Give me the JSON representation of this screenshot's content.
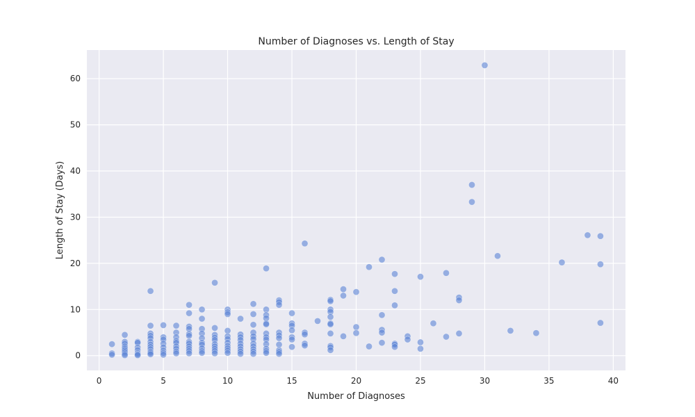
{
  "chart_data": {
    "type": "scatter",
    "title": "Number of Diagnoses vs. Length of Stay",
    "xlabel": "Number of Diagnoses",
    "ylabel": "Length of Stay (Days)",
    "xlim": [
      -0.95,
      40.95
    ],
    "ylim": [
      -3.2,
      66.2
    ],
    "xticks": [
      0,
      5,
      10,
      15,
      20,
      25,
      30,
      35,
      40
    ],
    "yticks": [
      0,
      10,
      20,
      30,
      40,
      50,
      60
    ],
    "grid": true,
    "background_color": "#eaeaf2",
    "grid_color": "#ffffff",
    "marker_color": "#5b83d6",
    "marker_alpha": 0.6,
    "points": [
      [
        1,
        2.5
      ],
      [
        1,
        0.5
      ],
      [
        1,
        0.2
      ],
      [
        2,
        4.5
      ],
      [
        2,
        3.0
      ],
      [
        2,
        2.6
      ],
      [
        2,
        2.0
      ],
      [
        2,
        1.6
      ],
      [
        2,
        1.2
      ],
      [
        2,
        0.8
      ],
      [
        2,
        0.4
      ],
      [
        2,
        0.1
      ],
      [
        3,
        3.0
      ],
      [
        3,
        2.8
      ],
      [
        3,
        1.8
      ],
      [
        3,
        1.2
      ],
      [
        3,
        0.6
      ],
      [
        3,
        0.3
      ],
      [
        3,
        0.1
      ],
      [
        4,
        14.0
      ],
      [
        4,
        6.5
      ],
      [
        4,
        4.8
      ],
      [
        4,
        4.3
      ],
      [
        4,
        3.8
      ],
      [
        4,
        3.0
      ],
      [
        4,
        2.4
      ],
      [
        4,
        1.9
      ],
      [
        4,
        1.4
      ],
      [
        4,
        0.9
      ],
      [
        4,
        0.6
      ],
      [
        4,
        0.3
      ],
      [
        5,
        6.6
      ],
      [
        5,
        4.0
      ],
      [
        5,
        3.5
      ],
      [
        5,
        2.6
      ],
      [
        5,
        1.8
      ],
      [
        5,
        1.1
      ],
      [
        5,
        0.6
      ],
      [
        5,
        0.2
      ],
      [
        6,
        6.5
      ],
      [
        6,
        5.0
      ],
      [
        6,
        4.0
      ],
      [
        6,
        3.2
      ],
      [
        6,
        2.8
      ],
      [
        6,
        2.0
      ],
      [
        6,
        1.5
      ],
      [
        6,
        0.9
      ],
      [
        6,
        0.5
      ],
      [
        7,
        11.0
      ],
      [
        7,
        9.2
      ],
      [
        7,
        6.3
      ],
      [
        7,
        5.8
      ],
      [
        7,
        4.7
      ],
      [
        7,
        4.3
      ],
      [
        7,
        3.0
      ],
      [
        7,
        2.6
      ],
      [
        7,
        2.0
      ],
      [
        7,
        1.5
      ],
      [
        7,
        1.0
      ],
      [
        7,
        0.5
      ],
      [
        8,
        10.0
      ],
      [
        8,
        8.0
      ],
      [
        8,
        5.8
      ],
      [
        8,
        4.8
      ],
      [
        8,
        3.8
      ],
      [
        8,
        2.8
      ],
      [
        8,
        2.4
      ],
      [
        8,
        1.6
      ],
      [
        8,
        1.0
      ],
      [
        8,
        0.6
      ],
      [
        9,
        15.8
      ],
      [
        9,
        6.0
      ],
      [
        9,
        4.5
      ],
      [
        9,
        3.9
      ],
      [
        9,
        3.4
      ],
      [
        9,
        2.5
      ],
      [
        9,
        2.0
      ],
      [
        9,
        1.5
      ],
      [
        9,
        1.0
      ],
      [
        9,
        0.5
      ],
      [
        10,
        10.0
      ],
      [
        10,
        9.4
      ],
      [
        10,
        9.0
      ],
      [
        10,
        5.4
      ],
      [
        10,
        4.2
      ],
      [
        10,
        3.6
      ],
      [
        10,
        2.8
      ],
      [
        10,
        2.1
      ],
      [
        10,
        1.6
      ],
      [
        10,
        1.1
      ],
      [
        10,
        0.6
      ],
      [
        11,
        8.0
      ],
      [
        11,
        4.6
      ],
      [
        11,
        4.0
      ],
      [
        11,
        3.4
      ],
      [
        11,
        2.6
      ],
      [
        11,
        2.0
      ],
      [
        11,
        1.4
      ],
      [
        11,
        0.9
      ],
      [
        11,
        0.4
      ],
      [
        12,
        11.2
      ],
      [
        12,
        9.0
      ],
      [
        12,
        6.7
      ],
      [
        12,
        5.0
      ],
      [
        12,
        4.2
      ],
      [
        12,
        3.6
      ],
      [
        12,
        2.6
      ],
      [
        12,
        2.0
      ],
      [
        12,
        1.4
      ],
      [
        12,
        0.9
      ],
      [
        12,
        0.4
      ],
      [
        13,
        18.9
      ],
      [
        13,
        10.0
      ],
      [
        13,
        8.8
      ],
      [
        13,
        8.1
      ],
      [
        13,
        7.0
      ],
      [
        13,
        6.8
      ],
      [
        13,
        4.8
      ],
      [
        13,
        4.0
      ],
      [
        13,
        3.5
      ],
      [
        13,
        2.5
      ],
      [
        13,
        1.5
      ],
      [
        13,
        1.0
      ],
      [
        13,
        0.6
      ],
      [
        14,
        12.0
      ],
      [
        14,
        11.6
      ],
      [
        14,
        11.0
      ],
      [
        14,
        5.0
      ],
      [
        14,
        4.4
      ],
      [
        14,
        3.8
      ],
      [
        14,
        2.4
      ],
      [
        14,
        1.2
      ],
      [
        14,
        0.8
      ],
      [
        14,
        0.4
      ],
      [
        15,
        9.2
      ],
      [
        15,
        7.0
      ],
      [
        15,
        6.5
      ],
      [
        15,
        5.5
      ],
      [
        15,
        4.0
      ],
      [
        15,
        3.5
      ],
      [
        15,
        1.9
      ],
      [
        16,
        24.3
      ],
      [
        16,
        5.0
      ],
      [
        16,
        4.6
      ],
      [
        16,
        2.6
      ],
      [
        16,
        2.2
      ],
      [
        17,
        7.5
      ],
      [
        18,
        12.1
      ],
      [
        18,
        11.8
      ],
      [
        18,
        10.0
      ],
      [
        18,
        9.5
      ],
      [
        18,
        8.4
      ],
      [
        18,
        7.0
      ],
      [
        18,
        6.8
      ],
      [
        18,
        4.8
      ],
      [
        18,
        2.1
      ],
      [
        18,
        1.8
      ],
      [
        18,
        1.2
      ],
      [
        19,
        14.4
      ],
      [
        19,
        13.0
      ],
      [
        19,
        4.2
      ],
      [
        20,
        13.8
      ],
      [
        20,
        6.2
      ],
      [
        20,
        4.9
      ],
      [
        21,
        19.2
      ],
      [
        21,
        2.0
      ],
      [
        22,
        20.8
      ],
      [
        22,
        8.8
      ],
      [
        22,
        5.6
      ],
      [
        22,
        5.0
      ],
      [
        22,
        2.8
      ],
      [
        23,
        17.7
      ],
      [
        23,
        14.0
      ],
      [
        23,
        10.9
      ],
      [
        23,
        2.6
      ],
      [
        23,
        2.4
      ],
      [
        23,
        1.9
      ],
      [
        24,
        4.2
      ],
      [
        24,
        3.5
      ],
      [
        25,
        17.1
      ],
      [
        25,
        2.9
      ],
      [
        25,
        1.5
      ],
      [
        26,
        7.0
      ],
      [
        27,
        17.9
      ],
      [
        27,
        4.1
      ],
      [
        28,
        12.6
      ],
      [
        28,
        12.0
      ],
      [
        28,
        4.8
      ],
      [
        29,
        37.0
      ],
      [
        29,
        33.3
      ],
      [
        30,
        62.9
      ],
      [
        31,
        21.6
      ],
      [
        32,
        5.4
      ],
      [
        34,
        4.9
      ],
      [
        36,
        20.2
      ],
      [
        38,
        26.1
      ],
      [
        39,
        25.9
      ],
      [
        39,
        19.8
      ],
      [
        39,
        7.1
      ]
    ]
  }
}
